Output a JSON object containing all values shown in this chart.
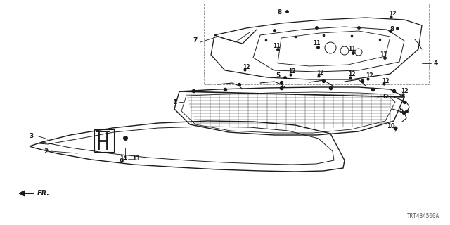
{
  "bg_color": "#ffffff",
  "line_color": "#1a1a1a",
  "diagram_code": "TRT4B4500A",
  "fig_w": 6.4,
  "fig_h": 3.2,
  "dpi": 100
}
